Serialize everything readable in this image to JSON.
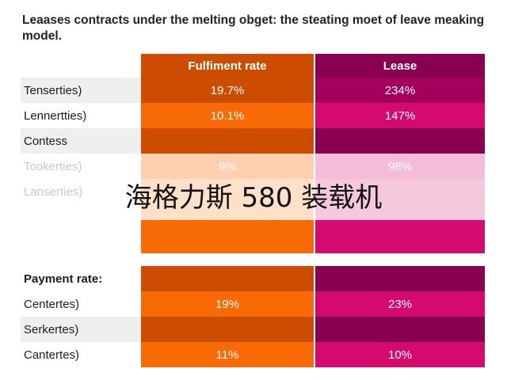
{
  "chart_data": {
    "type": "table",
    "title": "Leaases contracts under the melting obget: the steating moet of leave meaking model.",
    "columns": [
      "Fulfiment rate",
      "Lease"
    ],
    "colors": {
      "orange_dark": "#cc4c02",
      "orange_light": "#f86a06",
      "magenta_dark": "#88004f",
      "magenta_light": "#d40a6e"
    },
    "rows": [
      {
        "label": "Tenserties)",
        "values": [
          "19.7%",
          "234%"
        ]
      },
      {
        "label": "Lennertties)",
        "values": [
          "10.1%",
          "147%"
        ]
      },
      {
        "label": "Contess",
        "values": [
          "",
          ""
        ]
      },
      {
        "label": "Tookerties)",
        "values": [
          "9%",
          "98%"
        ]
      },
      {
        "label": "Lanserties)",
        "values": [
          "",
          ""
        ]
      },
      {
        "label": "",
        "values": [
          "",
          ""
        ]
      },
      {
        "label": "Payment rate:",
        "values": [
          "",
          ""
        ]
      },
      {
        "label": "Centertes)",
        "values": [
          "19%",
          "23%"
        ]
      },
      {
        "label": "Serkertes)",
        "values": [
          "",
          ""
        ]
      },
      {
        "label": "Cantertes)",
        "values": [
          "11%",
          "10%"
        ]
      }
    ]
  },
  "watermark_text": "海格力斯 580 装载机"
}
